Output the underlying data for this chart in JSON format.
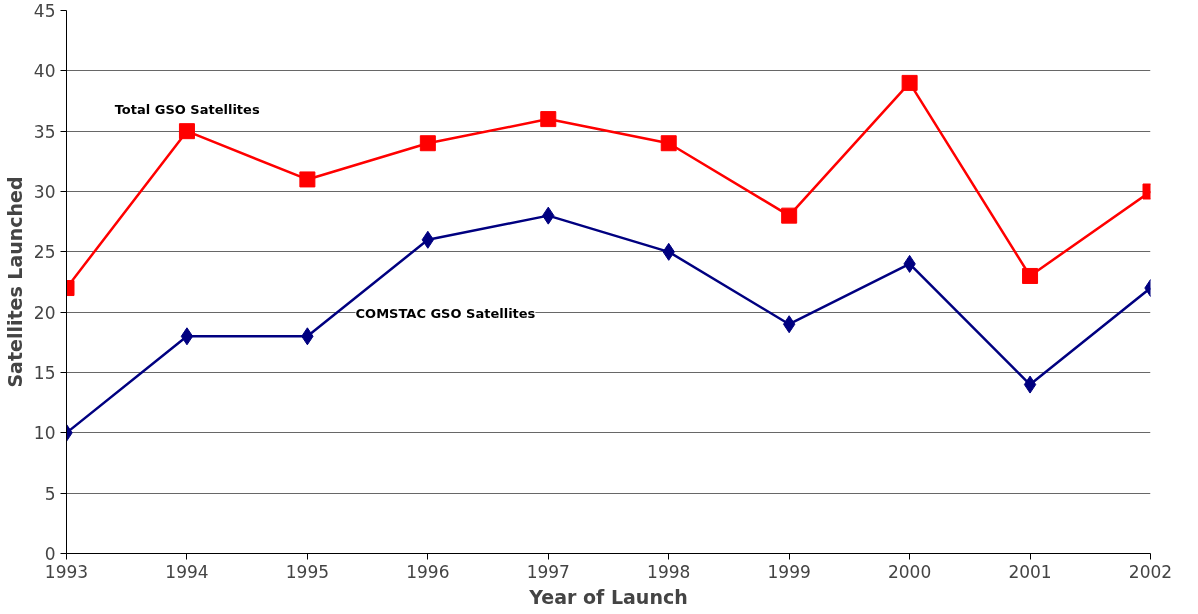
{
  "chart_data": {
    "type": "line",
    "xlabel": "Year of Launch",
    "ylabel": "Satellites Launched",
    "x": [
      1993,
      1994,
      1995,
      1996,
      1997,
      1998,
      1999,
      2000,
      2001,
      2002
    ],
    "series": [
      {
        "name": "Total GSO Satellites",
        "color": "#ff0000",
        "marker": "square",
        "values": [
          22,
          35,
          31,
          34,
          36,
          34,
          28,
          39,
          23,
          30
        ]
      },
      {
        "name": "COMSTAC GSO Satellites",
        "color": "#000080",
        "marker": "diamond",
        "values": [
          10,
          18,
          18,
          26,
          28,
          25,
          19,
          24,
          14,
          22
        ]
      }
    ],
    "xlim": [
      1993,
      2002
    ],
    "xticks": [
      1993,
      1994,
      1995,
      1996,
      1997,
      1998,
      1999,
      2000,
      2001,
      2002
    ],
    "ylim": [
      0,
      45
    ],
    "yticks": [
      0,
      5,
      10,
      15,
      20,
      25,
      30,
      35,
      40,
      45
    ],
    "grid": "y",
    "legend": false,
    "line_style": "solid"
  }
}
